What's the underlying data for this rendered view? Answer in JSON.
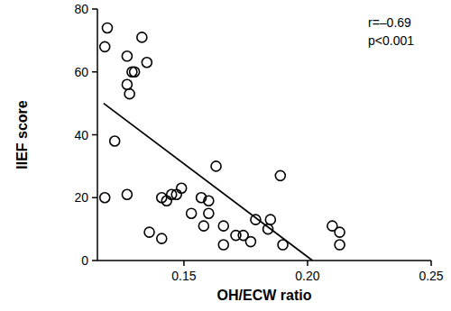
{
  "chart_data": {
    "type": "scatter",
    "x_label": "OH/ECW ratio",
    "y_label": "IIEF score",
    "annotations": [
      "r=–0.69",
      "p<0.001"
    ],
    "xlim": [
      0.115,
      0.25
    ],
    "xticks": [
      0.15,
      {
        "value": 0.2,
        "label": "0.20"
      },
      0.25
    ],
    "ylim": [
      0,
      80
    ],
    "yticks": [
      0,
      20,
      40,
      60,
      80
    ],
    "grid": false,
    "series": [
      {
        "type": "scatter",
        "marker": "open-circle",
        "color": "#000000",
        "x": [
          0.118,
          0.118,
          0.119,
          0.122,
          0.127,
          0.127,
          0.128,
          0.127,
          0.129,
          0.13,
          0.133,
          0.135,
          0.136,
          0.141,
          0.141,
          0.143,
          0.145,
          0.147,
          0.149,
          0.153,
          0.157,
          0.158,
          0.16,
          0.16,
          0.163,
          0.166,
          0.166,
          0.171,
          0.174,
          0.177,
          0.179,
          0.184,
          0.185,
          0.189,
          0.19,
          0.21,
          0.213,
          0.213
        ],
        "values": [
          20,
          68,
          74,
          38,
          56,
          65,
          53,
          21,
          60,
          60,
          71,
          63,
          9,
          7,
          20,
          19,
          21,
          21,
          23,
          15,
          20,
          11,
          19,
          15,
          30,
          11,
          5,
          8,
          8,
          6,
          13,
          10,
          13,
          27,
          5,
          11,
          9,
          5
        ]
      },
      {
        "type": "line",
        "line_style": "solid",
        "color": "#000000",
        "x": [
          0.1175,
          0.202
        ],
        "values": [
          50,
          0
        ]
      }
    ]
  }
}
